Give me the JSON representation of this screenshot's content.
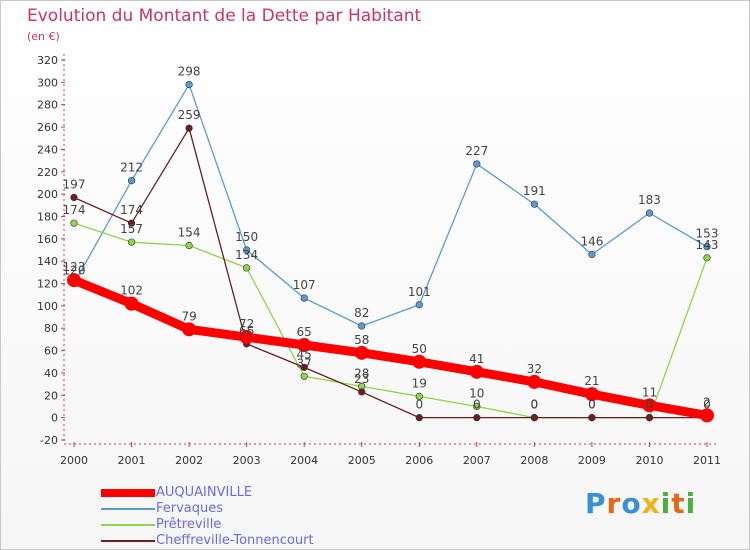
{
  "title": "Evolution du Montant de la Dette par Habitant",
  "subtitle": "(en €)",
  "logo": "Proxiti",
  "logo_colors": [
    "#3a8fd9",
    "#e8681a",
    "#3a8fd9",
    "#f0b21a",
    "#4cae3d",
    "#e8681a",
    "#4cae3d"
  ],
  "chart_data": {
    "type": "line",
    "title": "Evolution du Montant de la Dette par Habitant",
    "ylabel": "(en €)",
    "xlabel": "",
    "x": [
      "2000",
      "2001",
      "2002",
      "2003",
      "2004",
      "2005",
      "2006",
      "2007",
      "2008",
      "2009",
      "2010",
      "2011"
    ],
    "yticks": [
      -20,
      0,
      20,
      40,
      60,
      80,
      100,
      120,
      140,
      160,
      180,
      200,
      220,
      240,
      260,
      280,
      300,
      320
    ],
    "ylim": [
      -20,
      320
    ],
    "grid": false,
    "legend_position": "bottom-left",
    "series": [
      {
        "name": "AUQUAINVILLE",
        "color": "#ff0000",
        "values": [
          123,
          102,
          79,
          72,
          65,
          58,
          50,
          41,
          32,
          21,
          11,
          2
        ],
        "labels": [
          "123",
          "102",
          "79",
          "72",
          "65",
          "58",
          "50",
          "41",
          "32",
          "21",
          "11",
          "2"
        ]
      },
      {
        "name": "Fervaques",
        "color": "#5b9bd5",
        "values": [
          120,
          212,
          298,
          150,
          107,
          82,
          101,
          227,
          191,
          146,
          183,
          153
        ],
        "labels": [
          "120",
          "212",
          "298",
          "150",
          "107",
          "82",
          "101",
          "227",
          "191",
          "146",
          "183",
          "153"
        ]
      },
      {
        "name": "Prêtreville",
        "color": "#8fd44a",
        "values": [
          174,
          157,
          154,
          134,
          37,
          28,
          19,
          10,
          0,
          0,
          0,
          143
        ],
        "labels": [
          "174",
          "157",
          "154",
          "134",
          "37",
          "28",
          "19",
          "10",
          "0",
          "0",
          "0",
          "143"
        ]
      },
      {
        "name": "Cheffreville-Tonnencourt",
        "color": "#6b1f1f",
        "values": [
          197,
          174,
          259,
          66,
          45,
          23,
          0,
          0,
          0,
          0,
          0,
          0
        ],
        "labels": [
          "197",
          "174",
          "259",
          "66",
          "45",
          "23",
          "0",
          "0",
          "0",
          "0",
          "0",
          "0"
        ]
      }
    ]
  }
}
